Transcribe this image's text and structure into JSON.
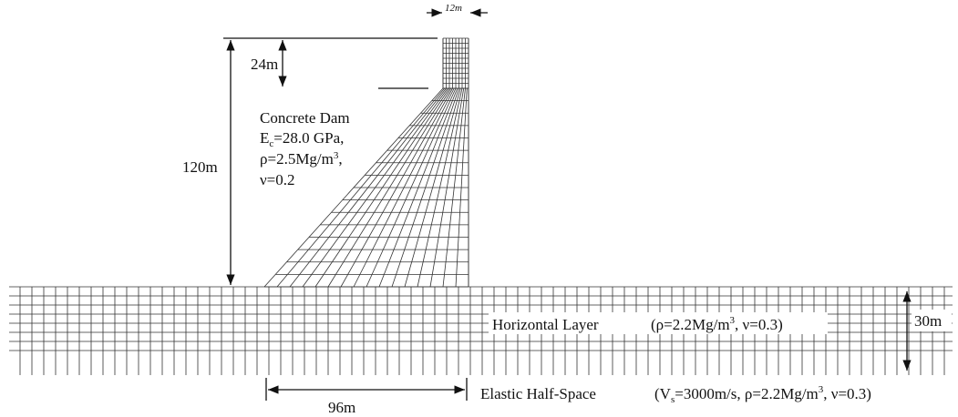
{
  "dam": {
    "crest_width": "12m",
    "crest_height": "24m",
    "height": "120m",
    "base_width": "96m",
    "label": "Concrete Dam",
    "modulus": {
      "base": "E",
      "sub": "c",
      "rest": "=28.0 GPa,"
    },
    "density": {
      "base": "ρ=2.5Mg/m",
      "sup": "3",
      "rest": ","
    },
    "poisson": "ν=0.2"
  },
  "layer": {
    "label": "Horizontal Layer",
    "props": {
      "base": "(ρ=2.2Mg/m",
      "sup": "3",
      "rest": ", ν=0.3)"
    },
    "thickness": "30m"
  },
  "halfspace": {
    "label": "Elastic Half-Space",
    "props": {
      "open": "(V",
      "sub": "s",
      "mid": "=3000m/s, ρ=2.2Mg/m",
      "sup": "3",
      "rest": ", ν=0.3)"
    }
  }
}
